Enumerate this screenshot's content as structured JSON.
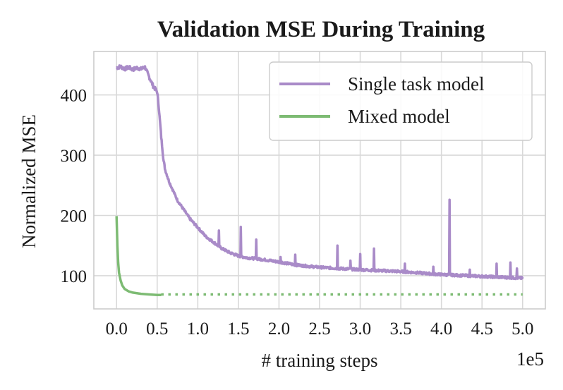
{
  "chart_data": {
    "type": "line",
    "title": "Validation MSE During Training",
    "xlabel": "# training steps",
    "ylabel": "Normalized MSE",
    "x_offset_label": "1e5",
    "xlim": [
      -0.28,
      5.28
    ],
    "ylim": [
      45,
      472
    ],
    "x_ticks": [
      0.0,
      0.5,
      1.0,
      1.5,
      2.0,
      2.5,
      3.0,
      3.5,
      4.0,
      4.5,
      5.0
    ],
    "x_tick_labels": [
      "0.0",
      "0.5",
      "1.0",
      "1.5",
      "2.0",
      "2.5",
      "3.0",
      "3.5",
      "4.0",
      "4.5",
      "5.0"
    ],
    "y_ticks": [
      100,
      200,
      300,
      400
    ],
    "y_tick_labels": [
      "100",
      "200",
      "300",
      "400"
    ],
    "grid": true,
    "legend_position": "top-right",
    "series": [
      {
        "name": "Single task model",
        "color": "#a98bc8",
        "style": "solid",
        "x": [
          0.0,
          0.05,
          0.1,
          0.15,
          0.2,
          0.25,
          0.3,
          0.35,
          0.4,
          0.45,
          0.5,
          0.52,
          0.55,
          0.58,
          0.6,
          0.65,
          0.7,
          0.75,
          0.8,
          0.9,
          1.0,
          1.1,
          1.2,
          1.25,
          1.3,
          1.4,
          1.5,
          1.6,
          1.8,
          2.0,
          2.2,
          2.5,
          3.0,
          3.5,
          4.0,
          4.5,
          5.0
        ],
        "y": [
          445,
          447,
          443,
          446,
          442,
          445,
          443,
          446,
          430,
          415,
          405,
          380,
          330,
          290,
          275,
          255,
          240,
          225,
          215,
          195,
          180,
          165,
          155,
          150,
          145,
          138,
          133,
          130,
          127,
          123,
          118,
          114,
          110,
          107,
          102,
          99,
          96
        ]
      },
      {
        "name": "Mixed model",
        "color": "#7dbb73",
        "style": "solid",
        "x": [
          0.0,
          0.01,
          0.02,
          0.03,
          0.05,
          0.07,
          0.1,
          0.15,
          0.2,
          0.3,
          0.4,
          0.5,
          0.55
        ],
        "y": [
          199,
          150,
          122,
          105,
          92,
          84,
          78,
          74,
          72,
          70,
          69,
          68,
          68
        ]
      },
      {
        "color": "#7dbb73",
        "style": "dotted",
        "x": [
          0.55,
          5.0
        ],
        "y": [
          69,
          69
        ]
      }
    ],
    "spikes": [
      {
        "x": 1.26,
        "y": 175
      },
      {
        "x": 1.53,
        "y": 181
      },
      {
        "x": 1.72,
        "y": 160
      },
      {
        "x": 2.02,
        "y": 131
      },
      {
        "x": 2.2,
        "y": 135
      },
      {
        "x": 2.72,
        "y": 150
      },
      {
        "x": 2.88,
        "y": 125
      },
      {
        "x": 3.0,
        "y": 136
      },
      {
        "x": 3.17,
        "y": 145
      },
      {
        "x": 3.55,
        "y": 120
      },
      {
        "x": 3.9,
        "y": 115
      },
      {
        "x": 4.1,
        "y": 226
      },
      {
        "x": 4.35,
        "y": 110
      },
      {
        "x": 4.68,
        "y": 120
      },
      {
        "x": 4.85,
        "y": 122
      },
      {
        "x": 4.93,
        "y": 112
      }
    ]
  }
}
